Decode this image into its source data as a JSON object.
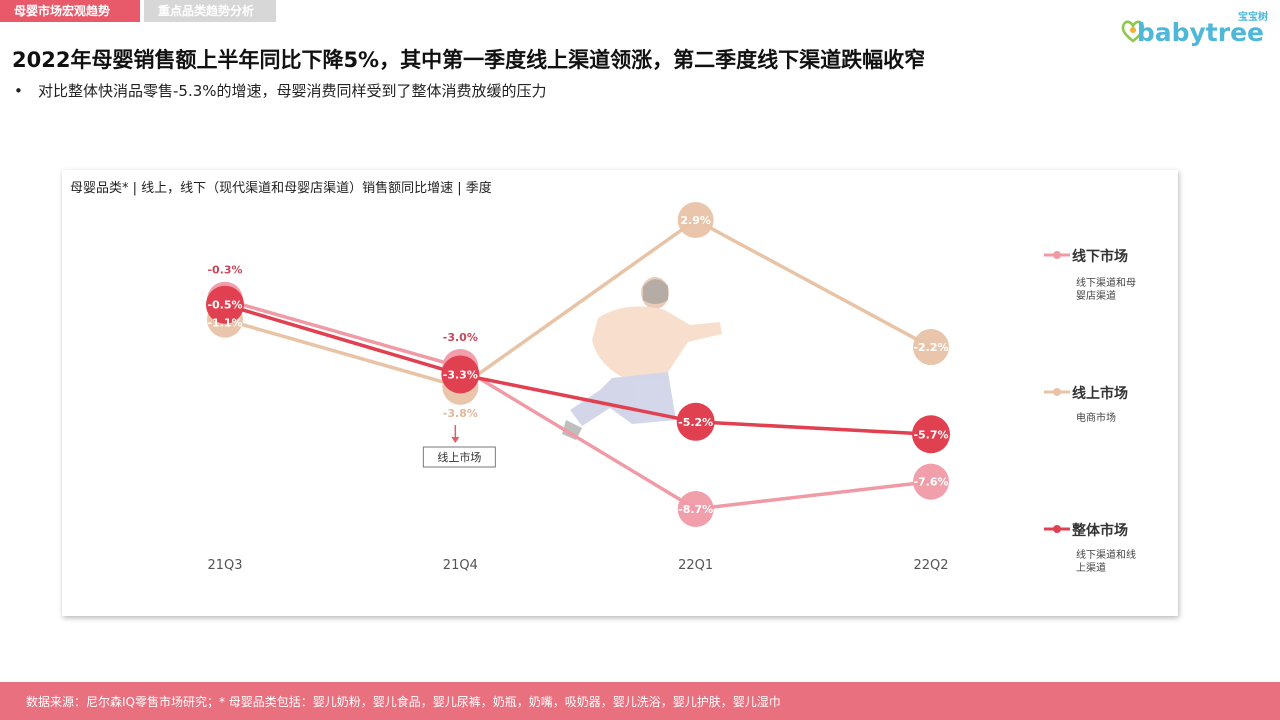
{
  "tabs": [
    {
      "label": "母婴市场宏观趋势",
      "active": true
    },
    {
      "label": "重点品类趋势分析",
      "active": false
    }
  ],
  "logo": {
    "sub": "宝宝树",
    "main": "babytree"
  },
  "headline": "2022年母婴销售额上半年同比下降5%，其中第一季度线上渠道领涨，第二季度线下渠道跌幅收窄",
  "bullet": "对比整体快消品零售-5.3%的增速，母婴消费同样受到了整体消费放缓的压力",
  "colors": {
    "accent": "#e85a6a",
    "offline": "#f09aa6",
    "online": "#e8c3a6",
    "overall": "#e0404f",
    "footer": "#e9707e"
  },
  "chart_data": {
    "type": "line",
    "title": "母婴品类* | 线上，线下（现代渠道和母婴店渠道）销售额同比增速 | 季度",
    "categories": [
      "21Q3",
      "21Q4",
      "22Q1",
      "22Q2"
    ],
    "unit": "%",
    "ylim": [
      -10,
      4
    ],
    "series": [
      {
        "name": "线下市场",
        "description": "线下渠道和母婴店渠道",
        "values": [
          -0.3,
          -3.0,
          -8.7,
          -7.6
        ],
        "labels": [
          "-0.3%",
          "-3.0%",
          "-8.7%",
          "-7.6%"
        ]
      },
      {
        "name": "线上市场",
        "description": "电商市场",
        "values": [
          -1.1,
          -3.8,
          2.9,
          -2.2
        ],
        "labels": [
          "-1.1%",
          "-3.8%",
          "2.9%",
          "-2.2%"
        ]
      },
      {
        "name": "整体市场",
        "description": "线下渠道和线上渠道",
        "values": [
          -0.5,
          -3.3,
          -5.2,
          -5.7
        ],
        "labels": [
          "-0.5%",
          "-3.3%",
          "-5.2%",
          "-5.7%"
        ]
      }
    ],
    "annotation": {
      "category": "21Q4",
      "text": "线上市场"
    },
    "legend": "right",
    "grid": false
  },
  "footer": "数据来源：尼尔森IQ零售市场研究；* 母婴品类包括：婴儿奶粉，婴儿食品，婴儿尿裤，奶瓶，奶嘴，吸奶器，婴儿洗浴，婴儿护肤，婴儿湿巾"
}
